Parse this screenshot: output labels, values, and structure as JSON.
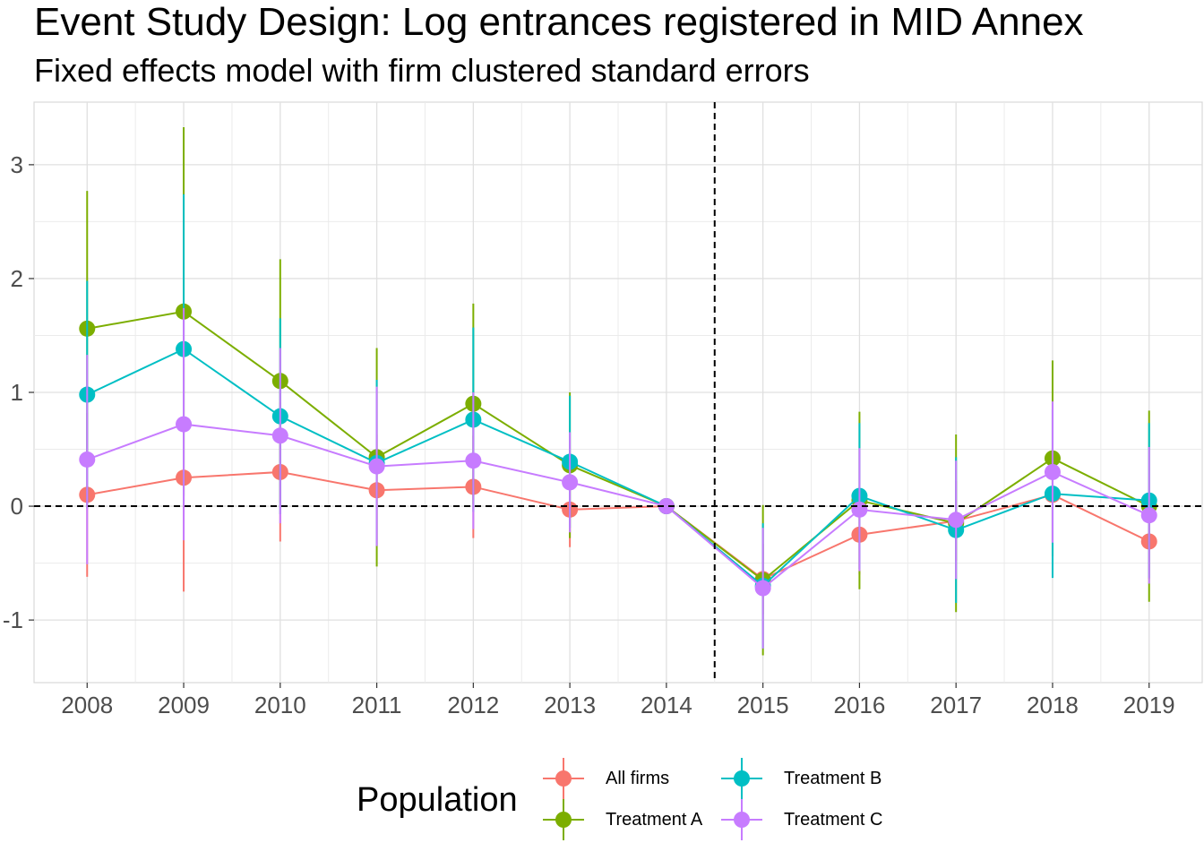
{
  "title": "Event Study Design: Log entrances registered in MID Annex",
  "subtitle": "Fixed effects model with firm clustered standard errors",
  "legend": {
    "title": "Population",
    "position": "bottom"
  },
  "chart_data": {
    "type": "line",
    "title": "Event Study Design: Log entrances registered in MID Annex",
    "subtitle": "Fixed effects model with firm clustered standard errors",
    "xlabel": "",
    "ylabel": "",
    "x": [
      2008,
      2009,
      2010,
      2011,
      2012,
      2013,
      2014,
      2015,
      2016,
      2017,
      2018,
      2019
    ],
    "x_tick_labels": [
      "2008",
      "2009",
      "2010",
      "2011",
      "2012",
      "2013",
      "2014",
      "2015",
      "2016",
      "2017",
      "2018",
      "2019"
    ],
    "y_ticks": [
      -1,
      0,
      1,
      2,
      3
    ],
    "y_tick_labels": [
      "-1",
      "0",
      "1",
      "2",
      "3"
    ],
    "ylim": [
      -1.55,
      3.55
    ],
    "reference_lines": {
      "y": 0,
      "x": 2014.5,
      "style": "dashed"
    },
    "grid": true,
    "error_bars": "vertical confidence intervals",
    "series": [
      {
        "name": "All firms",
        "color": "#F8766D",
        "values": [
          0.1,
          0.25,
          0.3,
          0.14,
          0.17,
          -0.03,
          0.0,
          -0.64,
          -0.25,
          -0.13,
          0.1,
          -0.31
        ],
        "lower": [
          -0.62,
          -0.75,
          -0.31,
          -0.35,
          -0.28,
          -0.36,
          0.0,
          -0.95,
          -0.6,
          -0.48,
          -0.31,
          -0.64
        ],
        "upper": [
          0.82,
          1.25,
          0.91,
          0.63,
          0.62,
          0.3,
          0.0,
          -0.33,
          0.1,
          0.22,
          0.51,
          0.02
        ]
      },
      {
        "name": "Treatment A",
        "color": "#7CAE00",
        "values": [
          1.56,
          1.71,
          1.1,
          0.43,
          0.9,
          0.36,
          0.0,
          -0.65,
          0.05,
          -0.15,
          0.42,
          0.0
        ],
        "lower": [
          0.35,
          0.09,
          0.03,
          -0.53,
          0.02,
          -0.28,
          0.0,
          -1.31,
          -0.73,
          -0.93,
          -0.44,
          -0.84
        ],
        "upper": [
          2.77,
          3.33,
          2.17,
          1.39,
          1.78,
          1.0,
          0.0,
          0.01,
          0.83,
          0.63,
          1.28,
          0.84
        ]
      },
      {
        "name": "Treatment B",
        "color": "#00BFC4",
        "values": [
          0.98,
          1.38,
          0.79,
          0.38,
          0.76,
          0.39,
          0.0,
          -0.7,
          0.09,
          -0.21,
          0.11,
          0.05
        ],
        "lower": [
          -0.02,
          0.02,
          -0.07,
          -0.35,
          -0.05,
          -0.19,
          0.0,
          -1.25,
          -0.55,
          -0.85,
          -0.63,
          -0.63
        ],
        "upper": [
          1.98,
          2.74,
          1.65,
          1.11,
          1.57,
          0.97,
          0.0,
          -0.15,
          0.73,
          0.43,
          0.85,
          0.73
        ]
      },
      {
        "name": "Treatment C",
        "color": "#C77CFF",
        "values": [
          0.41,
          0.72,
          0.62,
          0.35,
          0.4,
          0.21,
          0.0,
          -0.72,
          -0.03,
          -0.12,
          0.3,
          -0.08
        ],
        "lower": [
          -0.51,
          -0.3,
          -0.15,
          -0.35,
          -0.2,
          -0.23,
          0.0,
          -1.25,
          -0.57,
          -0.64,
          -0.32,
          -0.68
        ],
        "upper": [
          1.33,
          1.74,
          1.39,
          1.05,
          1.0,
          0.65,
          0.0,
          -0.19,
          0.51,
          0.4,
          0.92,
          0.52
        ]
      }
    ]
  }
}
